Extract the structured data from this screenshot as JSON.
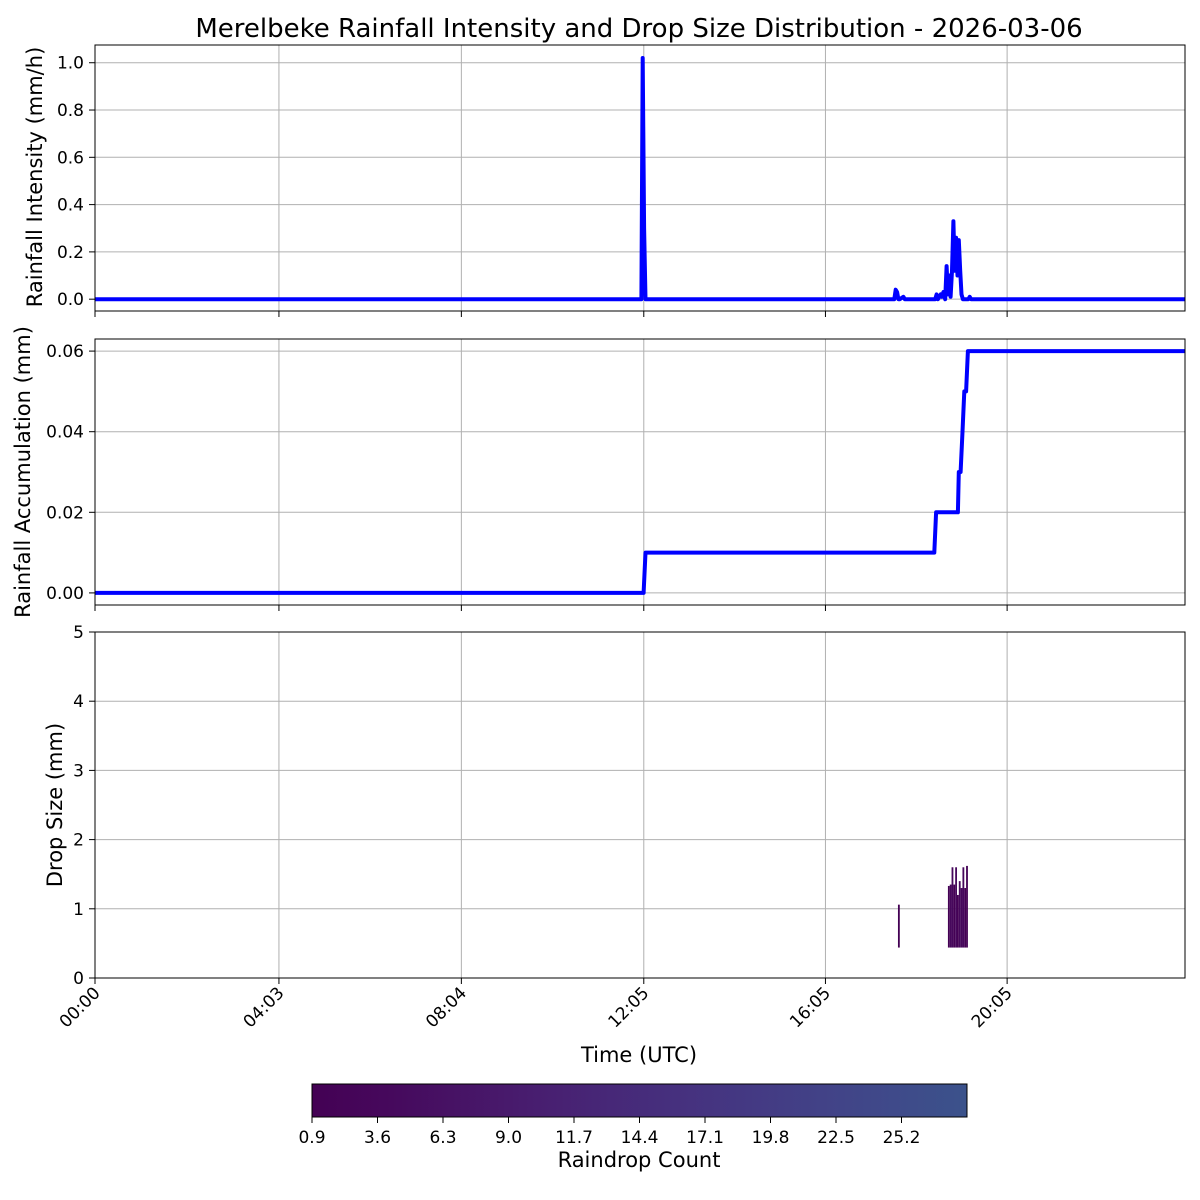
{
  "title": "Merelbeke Rainfall Intensity and Drop Size Distribution - 2026-03-06",
  "x_axis": {
    "label": "Time (UTC)",
    "range_hours": [
      0,
      24
    ],
    "tick_hours": [
      0,
      4.05,
      8.0667,
      12.0833,
      16.0833,
      20.0833
    ],
    "tick_labels": [
      "00:00",
      "04:03",
      "08:04",
      "12:05",
      "16:05",
      "20:05"
    ]
  },
  "colors": {
    "line": "#0000ff",
    "grid": "#b0b0b0",
    "axes": "#000000"
  },
  "chart_data": [
    {
      "type": "line",
      "panel": "intensity",
      "ylabel": "Rainfall Intensity (mm/h)",
      "ylim": [
        -0.05,
        1.075
      ],
      "yticks": [
        0.0,
        0.2,
        0.4,
        0.6,
        0.8,
        1.0
      ],
      "ytick_labels": [
        "0.0",
        "0.2",
        "0.4",
        "0.6",
        "0.8",
        "1.0"
      ],
      "grid": true,
      "x_hours": [
        0,
        12.03,
        12.06,
        12.09,
        12.12,
        17.6,
        17.63,
        17.66,
        17.69,
        17.72,
        17.8,
        17.83,
        17.86,
        18.5,
        18.53,
        18.56,
        18.62,
        18.65,
        18.68,
        18.72,
        18.75,
        18.78,
        18.81,
        18.84,
        18.87,
        18.9,
        18.93,
        18.96,
        18.99,
        19.02,
        19.05,
        19.08,
        19.11,
        19.14,
        19.17,
        19.2,
        19.23,
        19.26,
        19.29,
        19.32,
        19.35,
        24
      ],
      "y": [
        0,
        0,
        1.02,
        0.3,
        0,
        0,
        0.04,
        0.03,
        0,
        0,
        0.01,
        0,
        0,
        0,
        0.02,
        0,
        0.02,
        0.01,
        0.03,
        0,
        0.14,
        0.02,
        0.1,
        0.01,
        0.12,
        0.33,
        0.12,
        0.26,
        0.1,
        0.25,
        0.12,
        0.02,
        0,
        0,
        0,
        0,
        0,
        0.01,
        0,
        0,
        0,
        0
      ]
    },
    {
      "type": "line",
      "panel": "accumulation",
      "ylabel": "Rainfall Accumulation (mm)",
      "ylim": [
        -0.003,
        0.063
      ],
      "yticks": [
        0.0,
        0.02,
        0.04,
        0.06
      ],
      "ytick_labels": [
        "0.00",
        "0.02",
        "0.04",
        "0.06"
      ],
      "grid": true,
      "x_hours": [
        0,
        12.08,
        12.12,
        18.48,
        18.52,
        19.0,
        19.02,
        19.06,
        19.1,
        19.14,
        19.18,
        19.22,
        24
      ],
      "y": [
        0,
        0,
        0.01,
        0.01,
        0.02,
        0.02,
        0.03,
        0.03,
        0.04,
        0.05,
        0.05,
        0.06,
        0.06
      ]
    },
    {
      "type": "heatmap",
      "panel": "drop-size",
      "ylabel": "Drop Size (mm)",
      "ylim": [
        0,
        5
      ],
      "yticks": [
        0,
        1,
        2,
        3,
        4,
        5
      ],
      "ytick_labels": [
        "0",
        "1",
        "2",
        "3",
        "4",
        "5"
      ],
      "grid": true,
      "cells": [
        {
          "t": 17.68,
          "y0": 0.44,
          "y1": 1.06,
          "count": 1
        },
        {
          "t": 18.78,
          "y0": 0.44,
          "y1": 1.33,
          "count": 2
        },
        {
          "t": 18.82,
          "y0": 0.44,
          "y1": 1.35,
          "count": 3
        },
        {
          "t": 18.86,
          "y0": 0.44,
          "y1": 1.6,
          "count": 4
        },
        {
          "t": 18.9,
          "y0": 0.44,
          "y1": 1.35,
          "count": 2
        },
        {
          "t": 18.94,
          "y0": 0.44,
          "y1": 1.6,
          "count": 3
        },
        {
          "t": 18.98,
          "y0": 0.44,
          "y1": 1.2,
          "count": 2
        },
        {
          "t": 19.02,
          "y0": 0.44,
          "y1": 1.4,
          "count": 5
        },
        {
          "t": 19.06,
          "y0": 0.44,
          "y1": 1.3,
          "count": 4
        },
        {
          "t": 19.1,
          "y0": 0.44,
          "y1": 1.6,
          "count": 3
        },
        {
          "t": 19.14,
          "y0": 0.44,
          "y1": 1.3,
          "count": 2
        },
        {
          "t": 19.18,
          "y0": 0.44,
          "y1": 1.62,
          "count": 2
        }
      ]
    }
  ],
  "colorbar": {
    "label": "Raindrop Count",
    "range": [
      0.9,
      27.9
    ],
    "ticks": [
      0.9,
      3.6,
      6.3,
      9.0,
      11.7,
      14.4,
      17.1,
      19.8,
      22.5,
      25.2
    ],
    "tick_labels": [
      "0.9",
      "3.6",
      "6.3",
      "9.0",
      "11.7",
      "14.4",
      "17.1",
      "19.8",
      "22.5",
      "25.2"
    ],
    "colormap_stops": [
      "#440154",
      "#46085c",
      "#471365",
      "#481d6f",
      "#472777",
      "#46307e",
      "#443983",
      "#424287",
      "#3f4a8a",
      "#3b528b"
    ]
  }
}
